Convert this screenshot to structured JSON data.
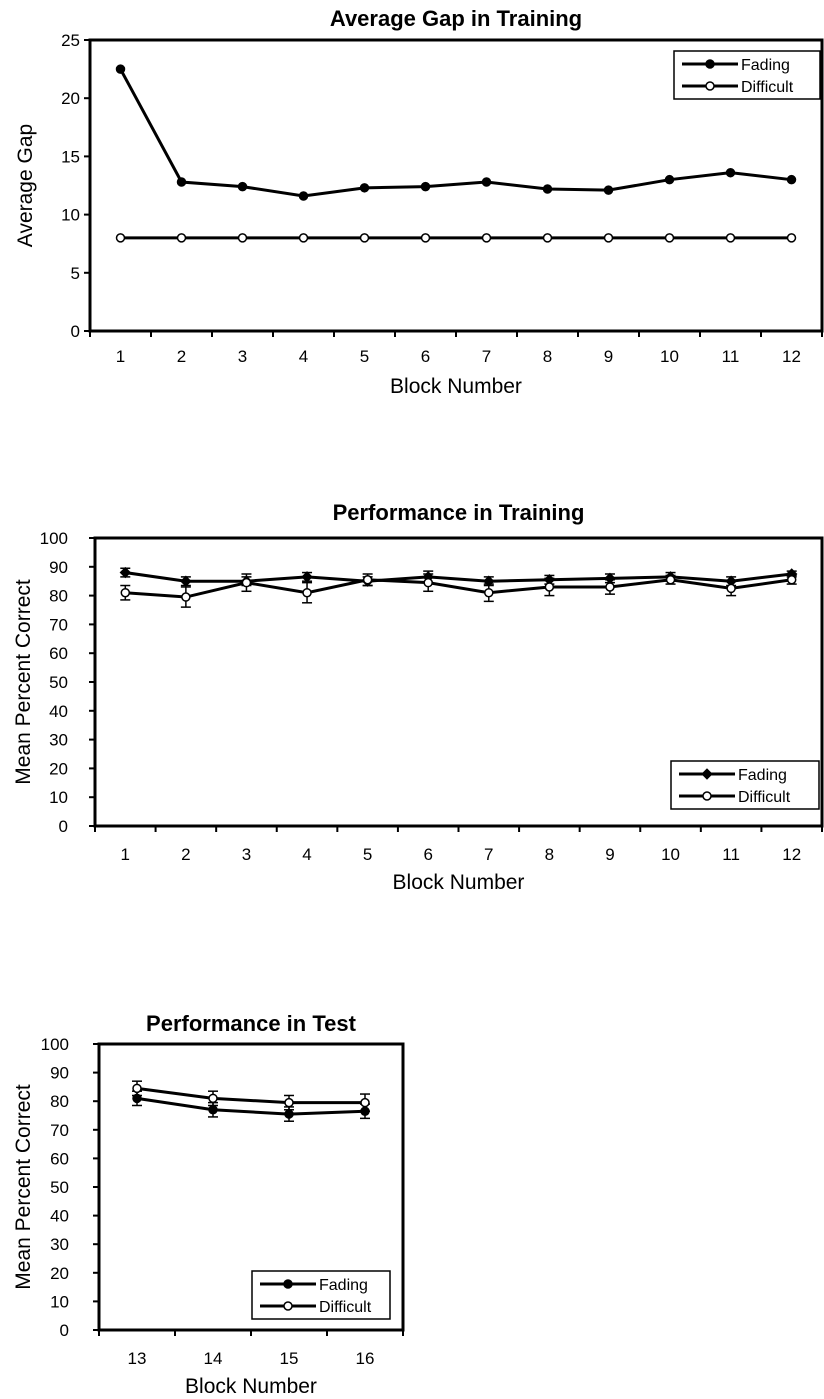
{
  "chart_data": [
    {
      "type": "line",
      "title": "Average Gap in Training",
      "xlabel": "Block Number",
      "ylabel": "Average  Gap",
      "x": [
        1,
        2,
        3,
        4,
        5,
        6,
        7,
        8,
        9,
        10,
        11,
        12
      ],
      "xticks": [
        "1",
        "2",
        "3",
        "4",
        "5",
        "6",
        "7",
        "8",
        "9",
        "10",
        "11",
        "12"
      ],
      "ylim": [
        0,
        25
      ],
      "yticks": [
        "0",
        "5",
        "10",
        "15",
        "20",
        "25"
      ],
      "legend_position": "top-right",
      "series": [
        {
          "name": "Fading",
          "marker": "filled-circle",
          "values": [
            22.5,
            12.8,
            12.4,
            11.6,
            12.3,
            12.4,
            12.8,
            12.2,
            12.1,
            13.0,
            13.6,
            13.0
          ]
        },
        {
          "name": "Difficult",
          "marker": "open-circle",
          "values": [
            8,
            8,
            8,
            8,
            8,
            8,
            8,
            8,
            8,
            8,
            8,
            8
          ]
        }
      ]
    },
    {
      "type": "line",
      "title": "Performance in Training",
      "xlabel": "Block Number",
      "ylabel": "Mean Percent  Correct",
      "x": [
        1,
        2,
        3,
        4,
        5,
        6,
        7,
        8,
        9,
        10,
        11,
        12
      ],
      "xticks": [
        "1",
        "2",
        "3",
        "4",
        "5",
        "6",
        "7",
        "8",
        "9",
        "10",
        "11",
        "12"
      ],
      "ylim": [
        0,
        100
      ],
      "yticks": [
        "0",
        "10",
        "20",
        "30",
        "40",
        "50",
        "60",
        "70",
        "80",
        "90",
        "100"
      ],
      "legend_position": "bottom-right",
      "series": [
        {
          "name": "Fading",
          "marker": "filled-diamond",
          "values": [
            88,
            85,
            85,
            86.5,
            85,
            86.5,
            85,
            85.5,
            86,
            86.5,
            85,
            87.5
          ],
          "error": [
            1.5,
            1.5,
            1.5,
            1.5,
            1.5,
            2,
            1.5,
            1.5,
            1.5,
            1.5,
            1.5,
            1
          ]
        },
        {
          "name": "Difficult",
          "marker": "open-circle",
          "values": [
            81,
            79.5,
            84.5,
            81,
            85.5,
            84.5,
            81,
            83,
            83,
            85.5,
            82.5,
            85.5
          ],
          "error": [
            2.5,
            3.5,
            3,
            3.5,
            2,
            3,
            3,
            3,
            2.5,
            1.5,
            2.5,
            1.5
          ]
        }
      ]
    },
    {
      "type": "line",
      "title": "Performance in Test",
      "xlabel": "Block Number",
      "ylabel": "Mean Percent  Correct",
      "x": [
        13,
        14,
        15,
        16
      ],
      "xticks": [
        "13",
        "14",
        "15",
        "16"
      ],
      "ylim": [
        0,
        100
      ],
      "yticks": [
        "0",
        "10",
        "20",
        "30",
        "40",
        "50",
        "60",
        "70",
        "80",
        "90",
        "100"
      ],
      "legend_position": "bottom-right",
      "series": [
        {
          "name": "Fading",
          "marker": "filled-circle",
          "values": [
            81,
            77,
            75.5,
            76.5
          ],
          "error": [
            2.5,
            2.5,
            2.5,
            2.5
          ]
        },
        {
          "name": "Difficult",
          "marker": "open-circle",
          "values": [
            84.5,
            81,
            79.5,
            79.5
          ],
          "error": [
            2.5,
            2.5,
            2.5,
            3
          ]
        }
      ]
    }
  ]
}
